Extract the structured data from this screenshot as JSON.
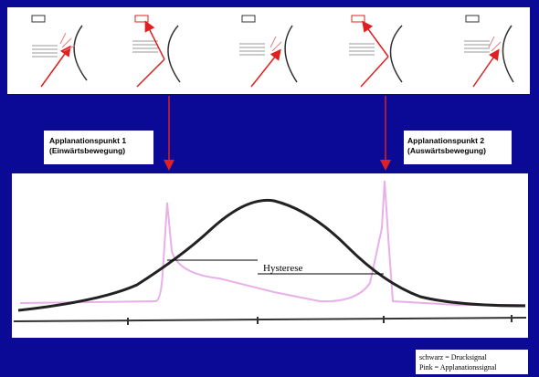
{
  "labels": {
    "point1": {
      "title": "Applanationspunkt 1",
      "subtitle": "(Einwärtsbewegung)"
    },
    "point2": {
      "title": "Applanationspunkt 2",
      "subtitle": "(Auswärtsbewegung)"
    }
  },
  "graph": {
    "hysteresis": "Hysterese"
  },
  "legend": {
    "black": "schwarz = Drucksignal",
    "pink": "Pink = Applanationssignal"
  }
}
